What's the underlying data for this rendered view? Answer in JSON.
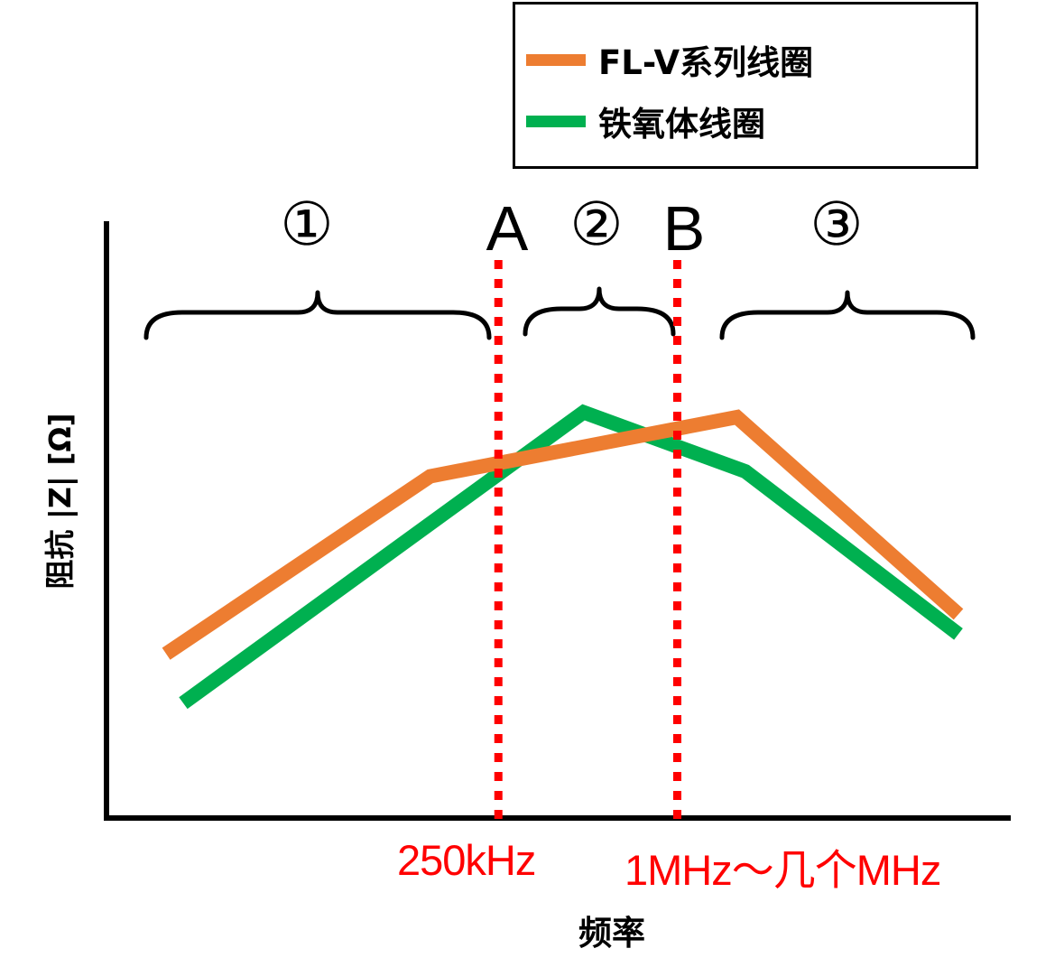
{
  "chart_data": {
    "type": "line",
    "title": "",
    "xlabel": "频率",
    "ylabel": "阻抗 |Z| [Ω]",
    "legend_position": "top-right",
    "grid": false,
    "x_ticks": [
      {
        "label": "250kHz",
        "color": "#ff0000"
      },
      {
        "label": "1MHz～几个MHz",
        "color": "#ff0000"
      }
    ],
    "vertical_markers": [
      {
        "name": "A",
        "label": "250kHz",
        "color": "#ff0000",
        "style": "dotted"
      },
      {
        "name": "B",
        "label": "1MHz～几个MHz",
        "color": "#ff0000",
        "style": "dotted"
      }
    ],
    "regions": [
      {
        "label": "①"
      },
      {
        "label": "②"
      },
      {
        "label": "③"
      }
    ],
    "series": [
      {
        "name": "FL-V系列线圈",
        "color": "#ed7d31",
        "points": [
          [
            0.07,
            0.15
          ],
          [
            0.38,
            0.51
          ],
          [
            0.74,
            0.63
          ],
          [
            1.0,
            0.23
          ]
        ]
      },
      {
        "name": "铁氧体线圈",
        "color": "#00b050",
        "points": [
          [
            0.09,
            0.05
          ],
          [
            0.56,
            0.64
          ],
          [
            0.75,
            0.52
          ],
          [
            1.0,
            0.19
          ]
        ]
      }
    ],
    "marker_x": {
      "A": 0.46,
      "B": 0.67
    }
  },
  "colors": {
    "axis": "#000000",
    "marker": "#ff0000"
  }
}
